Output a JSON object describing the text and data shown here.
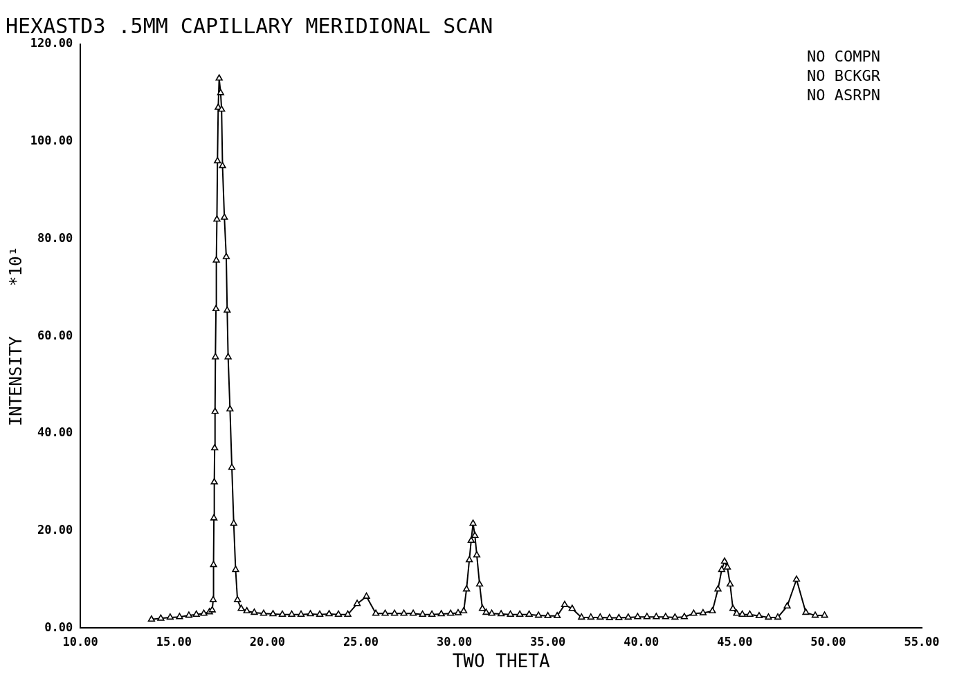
{
  "chart_data": {
    "type": "line",
    "title": "HEXASTD3 .5MM CAPILLARY MERIDIONAL SCAN",
    "xlabel": "TWO THETA",
    "ylabel": "INTENSITY     *10¹",
    "annotations": [
      "NO COMPN",
      "NO BCKGR",
      "NO ASRPN"
    ],
    "x": [
      13.8,
      14.3,
      14.8,
      15.3,
      15.8,
      16.2,
      16.6,
      16.9,
      17.05,
      17.1,
      17.12,
      17.14,
      17.16,
      17.18,
      17.2,
      17.22,
      17.25,
      17.27,
      17.3,
      17.33,
      17.37,
      17.42,
      17.5,
      17.55,
      17.6,
      17.7,
      17.8,
      17.85,
      17.9,
      18.0,
      18.1,
      18.2,
      18.3,
      18.4,
      18.6,
      18.9,
      19.3,
      19.8,
      20.3,
      20.8,
      21.3,
      21.8,
      22.3,
      22.8,
      23.3,
      23.8,
      24.3,
      24.8,
      25.3,
      25.8,
      26.3,
      26.8,
      27.3,
      27.8,
      28.3,
      28.8,
      29.3,
      29.8,
      30.2,
      30.5,
      30.65,
      30.8,
      30.9,
      31.0,
      31.1,
      31.2,
      31.35,
      31.5,
      31.7,
      32.0,
      32.5,
      33.0,
      33.5,
      34.0,
      34.5,
      35.0,
      35.5,
      35.9,
      36.3,
      36.8,
      37.3,
      37.8,
      38.3,
      38.8,
      39.3,
      39.8,
      40.3,
      40.8,
      41.3,
      41.8,
      42.3,
      42.8,
      43.3,
      43.8,
      44.1,
      44.3,
      44.45,
      44.6,
      44.75,
      44.9,
      45.1,
      45.4,
      45.8,
      46.3,
      46.8,
      47.3,
      47.8,
      48.3,
      48.8,
      49.3,
      49.8
    ],
    "series": [
      {
        "color": "#000000",
        "values": [
          1.8,
          2,
          2.2,
          2.3,
          2.6,
          2.8,
          3,
          3.3,
          3.7,
          5.8,
          13,
          22.6,
          30,
          37,
          44.5,
          55.7,
          65.6,
          75.6,
          84,
          96,
          107,
          113,
          110,
          106.6,
          95,
          84.4,
          76.3,
          65.3,
          55.7,
          45,
          33,
          21.5,
          12,
          5.8,
          4,
          3.5,
          3.2,
          3,
          2.9,
          2.8,
          2.8,
          2.8,
          2.9,
          2.8,
          2.9,
          2.8,
          2.8,
          5,
          6.5,
          3,
          3,
          3,
          3,
          3,
          2.8,
          2.8,
          2.9,
          3,
          3.1,
          3.5,
          8,
          14,
          18,
          21.5,
          19,
          15,
          9,
          4,
          3.2,
          3,
          2.9,
          2.8,
          2.8,
          2.8,
          2.6,
          2.5,
          2.5,
          4.8,
          4,
          2.2,
          2.2,
          2.2,
          2.1,
          2.1,
          2.2,
          2.3,
          2.3,
          2.3,
          2.3,
          2.2,
          2.3,
          3,
          3.1,
          3.5,
          8,
          12,
          13.7,
          12.5,
          9,
          4,
          3,
          2.8,
          2.8,
          2.5,
          2.2,
          2.2,
          4.5,
          10,
          3.2,
          2.6,
          2.6
        ]
      }
    ],
    "xlim": [
      10,
      55
    ],
    "xticks": [
      {
        "value": 10,
        "label": "10.00"
      },
      {
        "value": 15,
        "label": "15.00"
      },
      {
        "value": 20,
        "label": "20.00"
      },
      {
        "value": 25,
        "label": "25.00"
      },
      {
        "value": 30,
        "label": "30.00"
      },
      {
        "value": 35,
        "label": "35.00"
      },
      {
        "value": 40,
        "label": "40.00"
      },
      {
        "value": 45,
        "label": "45.00"
      },
      {
        "value": 50,
        "label": "50.00"
      },
      {
        "value": 55,
        "label": "55.00"
      }
    ],
    "ylim": [
      0,
      120
    ],
    "yticks": [
      {
        "value": 0,
        "label": "0.00"
      },
      {
        "value": 20,
        "label": "20.00"
      },
      {
        "value": 40,
        "label": "40.00"
      },
      {
        "value": 60,
        "label": "60.00"
      },
      {
        "value": 80,
        "label": "80.00"
      },
      {
        "value": 100,
        "label": "100.00"
      },
      {
        "value": 120,
        "label": "120.00"
      }
    ],
    "marker": "triangle",
    "line_style": "solid",
    "grid": false,
    "legend": false
  }
}
